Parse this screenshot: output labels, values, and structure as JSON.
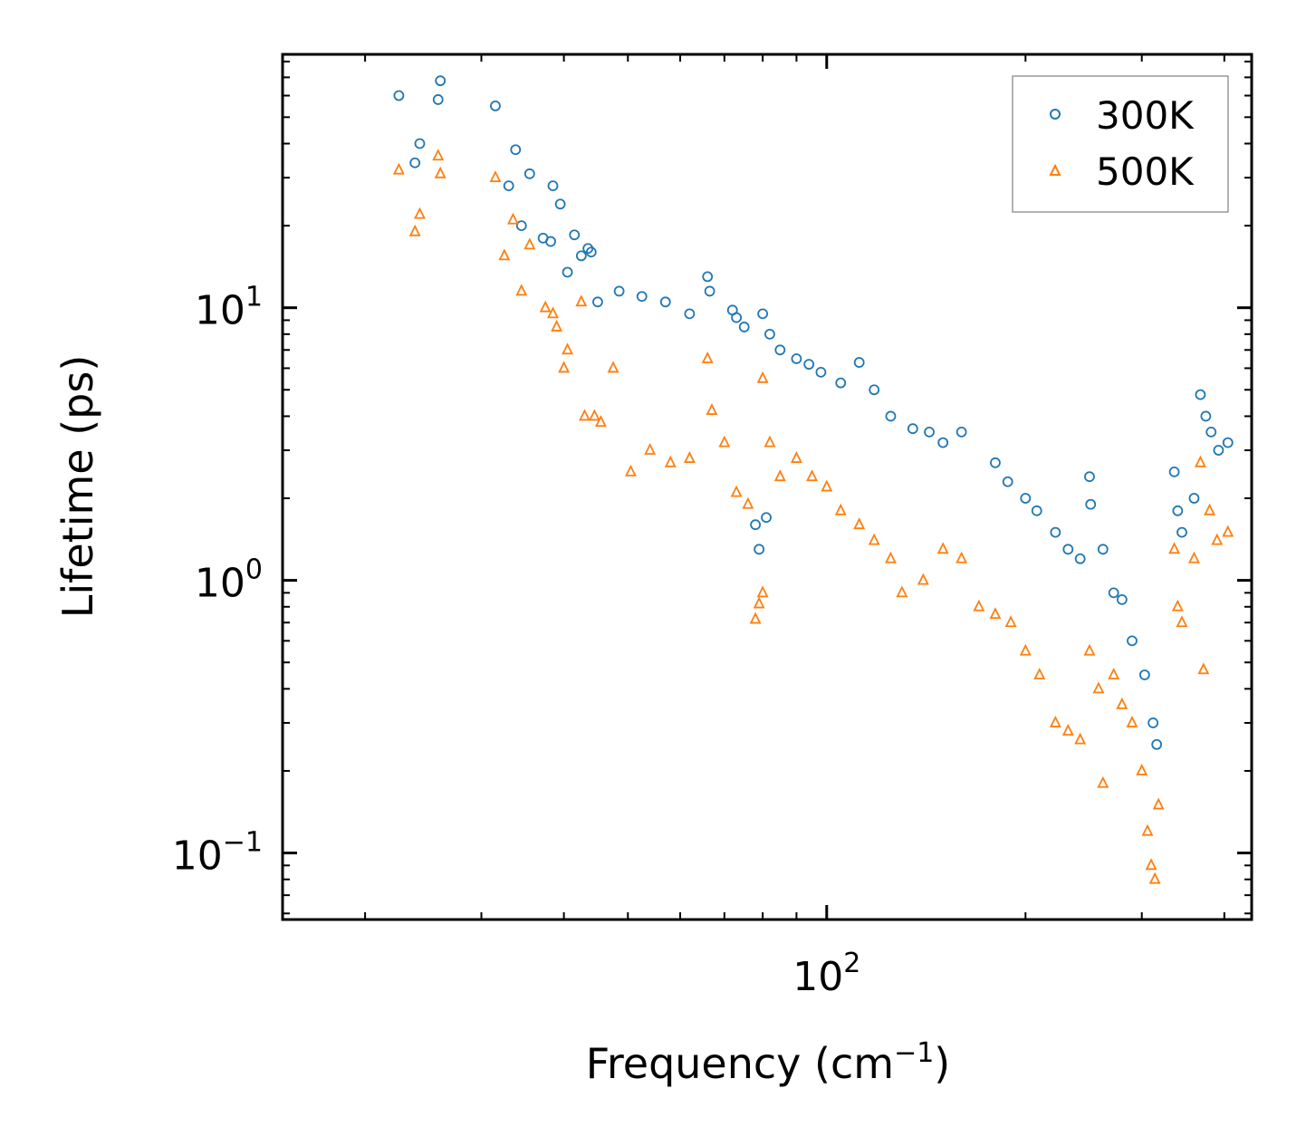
{
  "chart_data": {
    "type": "scatter",
    "title": "",
    "xlabel": "Frequency (cm",
    "xlabel_sup": "−1",
    "xlabel_tail": ")",
    "ylabel": "Lifetime (ps)",
    "xscale": "log",
    "yscale": "log",
    "xlim": [
      15,
      440
    ],
    "ylim": [
      0.057,
      85
    ],
    "x_major_ticks": [
      {
        "value": 100,
        "base": "10",
        "exp": "2"
      }
    ],
    "y_major_ticks": [
      {
        "value": 10,
        "base": "10",
        "exp": "1"
      },
      {
        "value": 1,
        "base": "10",
        "exp": "0"
      },
      {
        "value": 0.1,
        "base": "10",
        "exp": "−1"
      }
    ],
    "legend": {
      "position": "top-right"
    },
    "series": [
      {
        "name": "300K",
        "marker": "circle",
        "color": "#1f77b4",
        "points": [
          [
            22.5,
            60
          ],
          [
            23.8,
            34
          ],
          [
            24.2,
            40
          ],
          [
            25.8,
            58
          ],
          [
            26.0,
            68
          ],
          [
            31.5,
            55
          ],
          [
            33.0,
            28
          ],
          [
            33.8,
            38
          ],
          [
            34.5,
            20
          ],
          [
            35.5,
            31
          ],
          [
            37.2,
            18
          ],
          [
            38.2,
            17.5
          ],
          [
            38.5,
            28
          ],
          [
            39.5,
            24
          ],
          [
            40.5,
            13.5
          ],
          [
            41.5,
            18.5
          ],
          [
            42.5,
            15.5
          ],
          [
            43.5,
            16.5
          ],
          [
            44.0,
            16
          ],
          [
            45.0,
            10.5
          ],
          [
            48.5,
            11.5
          ],
          [
            52.5,
            11
          ],
          [
            57,
            10.5
          ],
          [
            62,
            9.5
          ],
          [
            66,
            13
          ],
          [
            66.5,
            11.5
          ],
          [
            72,
            9.8
          ],
          [
            73,
            9.2
          ],
          [
            75,
            8.5
          ],
          [
            80,
            9.5
          ],
          [
            82,
            8
          ],
          [
            85,
            7
          ],
          [
            90,
            6.5
          ],
          [
            94,
            6.2
          ],
          [
            98,
            5.8
          ],
          [
            105,
            5.3
          ],
          [
            112,
            6.3
          ],
          [
            118,
            5
          ],
          [
            125,
            4
          ],
          [
            135,
            3.6
          ],
          [
            143,
            3.5
          ],
          [
            150,
            3.2
          ],
          [
            160,
            3.5
          ],
          [
            180,
            2.7
          ],
          [
            188,
            2.3
          ],
          [
            200,
            2
          ],
          [
            208,
            1.8
          ],
          [
            222,
            1.5
          ],
          [
            232,
            1.3
          ],
          [
            242,
            1.2
          ],
          [
            250,
            2.4
          ],
          [
            251,
            1.9
          ],
          [
            262,
            1.3
          ],
          [
            272,
            0.9
          ],
          [
            280,
            0.85
          ],
          [
            290,
            0.6
          ],
          [
            303,
            0.45
          ],
          [
            312,
            0.3
          ],
          [
            316,
            0.25
          ],
          [
            336,
            2.5
          ],
          [
            340,
            1.8
          ],
          [
            345,
            1.5
          ],
          [
            360,
            2
          ],
          [
            368,
            4.8
          ],
          [
            375,
            4
          ],
          [
            382,
            3.5
          ],
          [
            392,
            3
          ],
          [
            405,
            3.2
          ],
          [
            78,
            1.6
          ],
          [
            79,
            1.3
          ],
          [
            81,
            1.7
          ]
        ]
      },
      {
        "name": "500K",
        "marker": "triangle",
        "color": "#ff7f0e",
        "points": [
          [
            22.5,
            32
          ],
          [
            23.8,
            19
          ],
          [
            24.2,
            22
          ],
          [
            25.8,
            36
          ],
          [
            26.0,
            31
          ],
          [
            31.5,
            30
          ],
          [
            32.5,
            15.5
          ],
          [
            33.5,
            21
          ],
          [
            34.5,
            11.5
          ],
          [
            35.5,
            17
          ],
          [
            37.5,
            10
          ],
          [
            38.5,
            9.5
          ],
          [
            39.0,
            8.5
          ],
          [
            40.5,
            7
          ],
          [
            40.0,
            6
          ],
          [
            42.5,
            10.5
          ],
          [
            43.0,
            4
          ],
          [
            44.5,
            4
          ],
          [
            45.5,
            3.8
          ],
          [
            47.5,
            6
          ],
          [
            50.5,
            2.5
          ],
          [
            54,
            3
          ],
          [
            58,
            2.7
          ],
          [
            62,
            2.8
          ],
          [
            66,
            6.5
          ],
          [
            67,
            4.2
          ],
          [
            70,
            3.2
          ],
          [
            73,
            2.1
          ],
          [
            76,
            1.9
          ],
          [
            80,
            5.5
          ],
          [
            82,
            3.2
          ],
          [
            85,
            2.4
          ],
          [
            90,
            2.8
          ],
          [
            95,
            2.4
          ],
          [
            100,
            2.2
          ],
          [
            105,
            1.8
          ],
          [
            112,
            1.6
          ],
          [
            118,
            1.4
          ],
          [
            125,
            1.2
          ],
          [
            130,
            0.9
          ],
          [
            140,
            1
          ],
          [
            150,
            1.3
          ],
          [
            160,
            1.2
          ],
          [
            170,
            0.8
          ],
          [
            180,
            0.75
          ],
          [
            190,
            0.7
          ],
          [
            200,
            0.55
          ],
          [
            210,
            0.45
          ],
          [
            222,
            0.3
          ],
          [
            232,
            0.28
          ],
          [
            242,
            0.26
          ],
          [
            250,
            0.55
          ],
          [
            258,
            0.4
          ],
          [
            262,
            0.18
          ],
          [
            272,
            0.45
          ],
          [
            280,
            0.35
          ],
          [
            290,
            0.3
          ],
          [
            300,
            0.2
          ],
          [
            306,
            0.12
          ],
          [
            310,
            0.09
          ],
          [
            314,
            0.08
          ],
          [
            318,
            0.15
          ],
          [
            336,
            1.3
          ],
          [
            340,
            0.8
          ],
          [
            345,
            0.7
          ],
          [
            360,
            1.2
          ],
          [
            368,
            2.7
          ],
          [
            372,
            0.47
          ],
          [
            380,
            1.8
          ],
          [
            390,
            1.4
          ],
          [
            405,
            1.5
          ],
          [
            78,
            0.72
          ],
          [
            79,
            0.82
          ],
          [
            80,
            0.9
          ]
        ]
      }
    ]
  }
}
